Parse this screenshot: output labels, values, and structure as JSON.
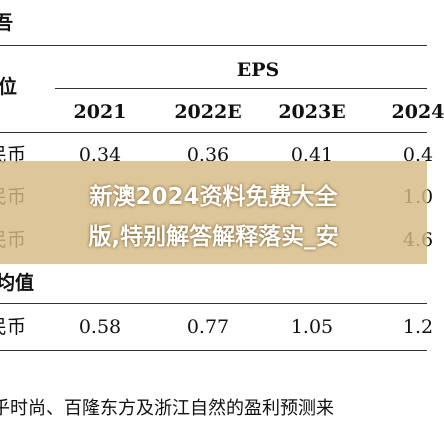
{
  "header": {
    "title": "吾",
    "unit_label": "位",
    "group": "EPS",
    "columns": [
      "2021",
      "2022E",
      "2023E",
      "2024"
    ]
  },
  "rows": [
    {
      "label": "民币",
      "cells": [
        "0.34",
        "0.36",
        "0.41",
        "0.4"
      ]
    },
    {
      "label": "民币",
      "cells": [
        null,
        null,
        null,
        "1.0"
      ]
    },
    {
      "label": "民币",
      "cells": [
        null,
        null,
        null,
        "4.6"
      ]
    },
    {
      "label": "均值",
      "cells": [
        null,
        null,
        null,
        null
      ]
    },
    {
      "label": "民币",
      "cells": [
        "0.58",
        "0.77",
        "1.05",
        "1.2"
      ]
    }
  ],
  "banner": {
    "lines": [
      "新澳2024资料免费大全",
      "版,特别解答解释落实_安"
    ]
  },
  "footnote": "乎时尚、百隆东方及浙江自然的盈利预测来"
}
